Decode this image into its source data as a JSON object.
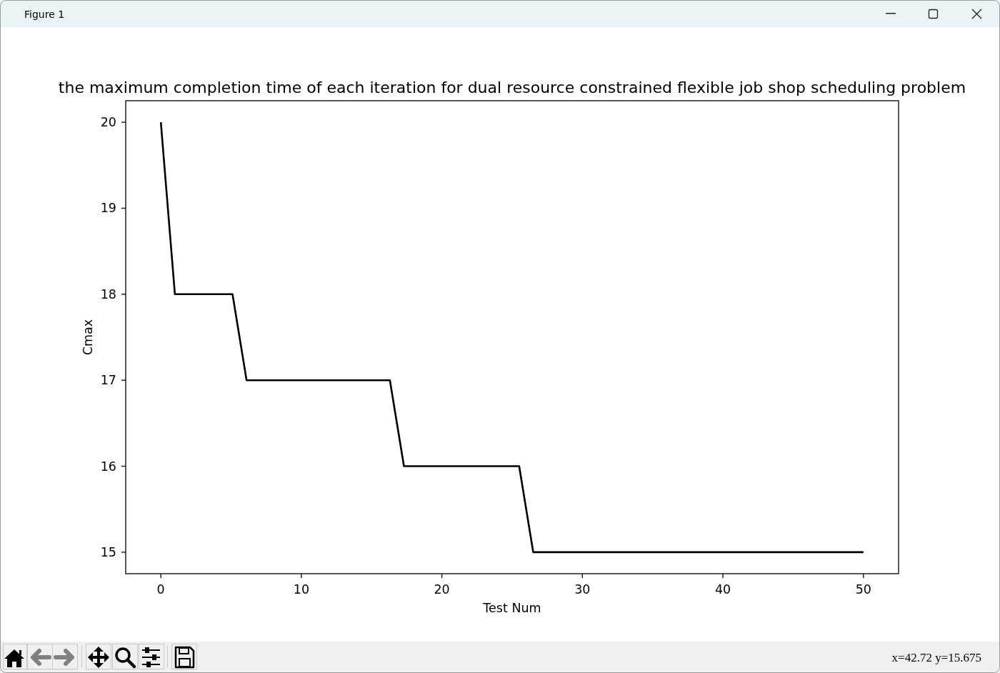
{
  "chart_data": {
    "type": "line",
    "title": "the maximum completion time of each iteration for dual resource constrained flexible job shop scheduling problem",
    "xlabel": "Test Num",
    "ylabel": "Cmax",
    "x": [
      0,
      1,
      5.1,
      6.1,
      16.3,
      17.3,
      25.5,
      26.5,
      50
    ],
    "series": [
      {
        "color": "#000000",
        "values": [
          20,
          18,
          18,
          17,
          17,
          16,
          16,
          15,
          15
        ]
      }
    ],
    "xlim": [
      -2.5,
      52.5
    ],
    "ylim": [
      14.75,
      20.25
    ],
    "xticks": [
      0,
      10,
      20,
      30,
      40,
      50
    ],
    "yticks": [
      15,
      16,
      17,
      18,
      19,
      20
    ],
    "line_style": "solid",
    "annotations": [
      "Figure 1",
      "x=42.72 y=15.675"
    ]
  }
}
